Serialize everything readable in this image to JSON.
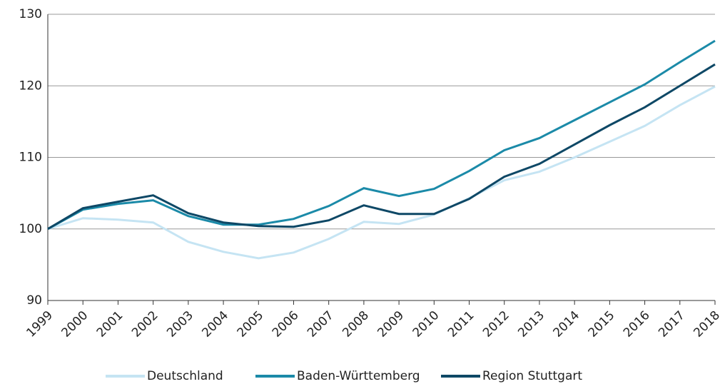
{
  "chart_data": {
    "type": "line",
    "categories": [
      "1999",
      "2000",
      "2001",
      "2002",
      "2003",
      "2004",
      "2005",
      "2006",
      "2007",
      "2008",
      "2009",
      "2010",
      "2011",
      "2012",
      "2013",
      "2014",
      "2015",
      "2016",
      "2017",
      "2018"
    ],
    "series": [
      {
        "name": "Deutschland",
        "color": "#c5e4f3",
        "values": [
          100,
          101.5,
          101.3,
          100.9,
          98.2,
          96.8,
          95.9,
          96.7,
          98.6,
          101.0,
          100.7,
          102.0,
          104.3,
          106.8,
          108.0,
          110.0,
          112.2,
          114.4,
          117.3,
          119.9
        ]
      },
      {
        "name": "Baden-Württemberg",
        "color": "#1b8aa8",
        "values": [
          100,
          102.7,
          103.5,
          104.0,
          101.8,
          100.6,
          100.6,
          101.4,
          103.2,
          105.7,
          104.6,
          105.6,
          108.1,
          111.0,
          112.7,
          115.2,
          117.7,
          120.2,
          123.3,
          126.3
        ]
      },
      {
        "name": "Region Stuttgart",
        "color": "#0e4866",
        "values": [
          100,
          102.9,
          103.8,
          104.7,
          102.2,
          100.9,
          100.4,
          100.3,
          101.2,
          103.3,
          102.1,
          102.1,
          104.2,
          107.3,
          109.1,
          111.8,
          114.5,
          117.0,
          120.0,
          123.0
        ]
      }
    ],
    "ylim": [
      90,
      130
    ],
    "yticks": [
      90,
      100,
      110,
      120,
      130
    ],
    "grid": true,
    "legend": "bottom"
  }
}
